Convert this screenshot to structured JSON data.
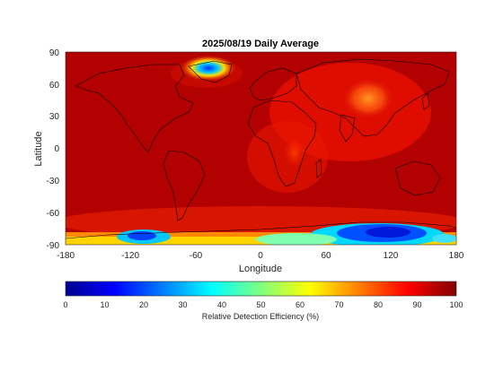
{
  "title": "2025/08/19 Daily Average",
  "xlabel": "Longitude",
  "ylabel": "Latitude",
  "x_ticks": [
    "-180",
    "-120",
    "-60",
    "0",
    "60",
    "120",
    "180"
  ],
  "y_ticks": [
    "90",
    "60",
    "30",
    "0",
    "-30",
    "-60",
    "-90"
  ],
  "colorbar": {
    "label": "Relative Detection Efficiency (%)",
    "ticks": [
      "0",
      "10",
      "20",
      "30",
      "40",
      "50",
      "60",
      "70",
      "80",
      "90",
      "100"
    ],
    "colormap": "jet",
    "range": [
      0,
      100
    ]
  },
  "colors": {
    "background_field": "#b30000",
    "coastline": "#000000"
  }
}
